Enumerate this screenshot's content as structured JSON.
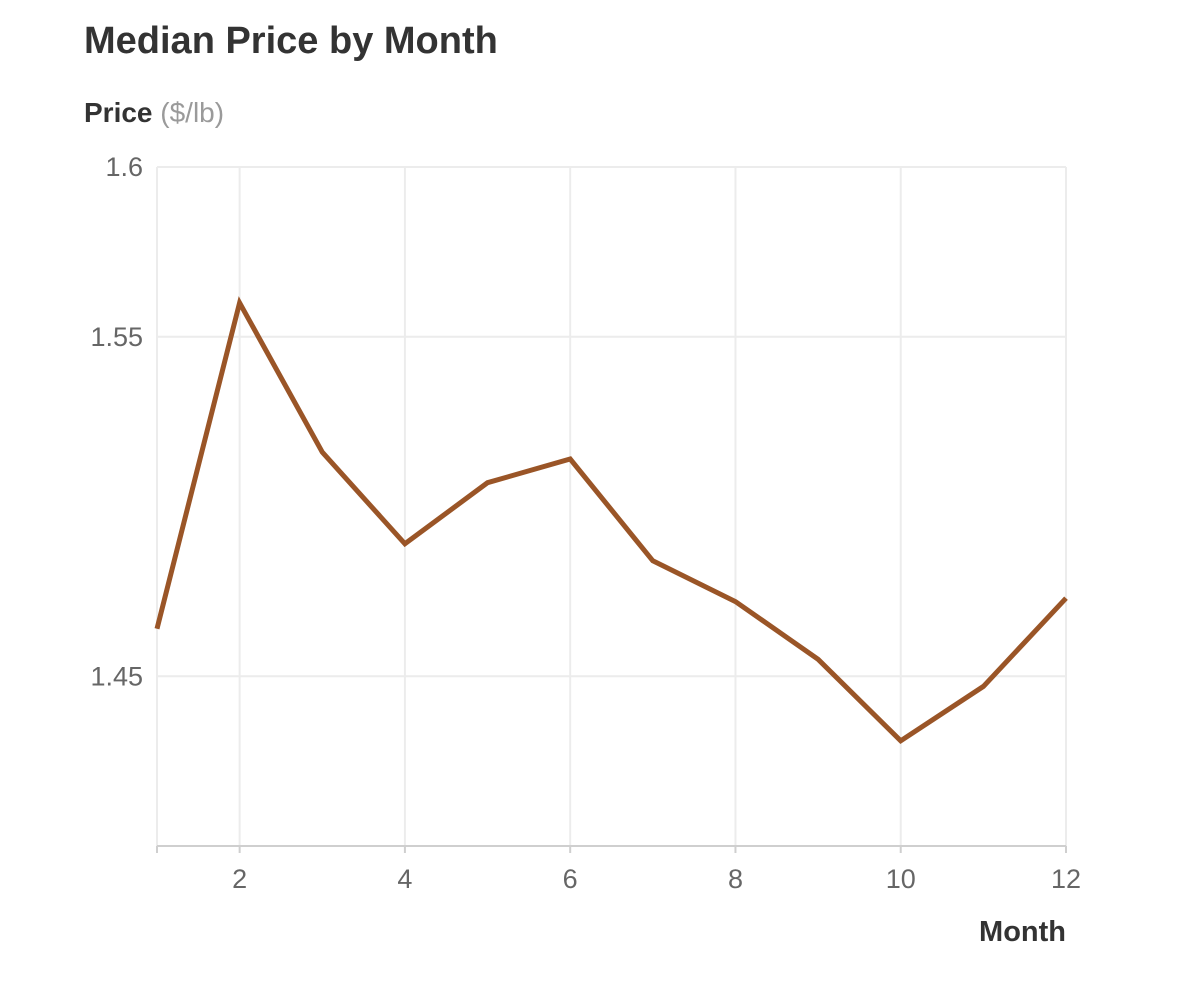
{
  "colors": {
    "line": "#9a5527",
    "grid": "#ececec",
    "axis": "#cfcfcf"
  },
  "chart_data": {
    "type": "line",
    "title": "Median Price by Month",
    "ylabel": "Price",
    "yunit": "($/lb)",
    "xlabel": "Month",
    "xlim": [
      1,
      12
    ],
    "ylim": [
      1.4,
      1.6
    ],
    "xticks": [
      2,
      4,
      6,
      8,
      10,
      12
    ],
    "yticks": [
      1.45,
      1.55,
      1.6
    ],
    "ytick_labels": [
      "1.45",
      "1.55",
      "1.6"
    ],
    "grid": true,
    "series": [
      {
        "x": [
          1,
          2,
          3,
          4,
          5,
          6,
          7,
          8,
          9,
          10,
          11,
          12
        ],
        "values": [
          1.464,
          1.56,
          1.516,
          1.489,
          1.507,
          1.514,
          1.484,
          1.472,
          1.455,
          1.431,
          1.447,
          1.473
        ]
      }
    ]
  }
}
